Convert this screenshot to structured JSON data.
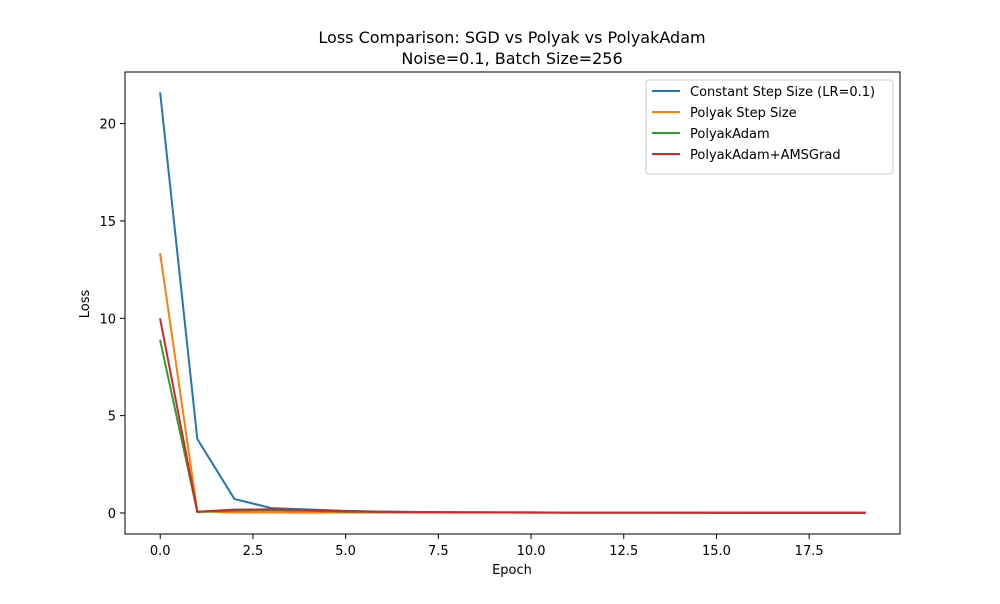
{
  "chart_data": {
    "type": "line",
    "title": "Loss Comparison: SGD vs Polyak vs PolyakAdam",
    "subtitle": "Noise=0.1, Batch Size=256",
    "xlabel": "Epoch",
    "ylabel": "Loss",
    "xlim": [
      -0.95,
      19.95
    ],
    "ylim": [
      -1.08,
      22.65
    ],
    "x_ticks": [
      0.0,
      2.5,
      5.0,
      7.5,
      10.0,
      12.5,
      15.0,
      17.5
    ],
    "x_tick_labels": [
      "0.0",
      "2.5",
      "5.0",
      "7.5",
      "10.0",
      "12.5",
      "15.0",
      "17.5"
    ],
    "y_ticks": [
      0,
      5,
      10,
      15,
      20
    ],
    "y_tick_labels": [
      "0",
      "5",
      "10",
      "15",
      "20"
    ],
    "grid": false,
    "legend_position": "top-right",
    "x": [
      0,
      1,
      2,
      3,
      4,
      5,
      6,
      7,
      8,
      9,
      10,
      11,
      12,
      13,
      14,
      15,
      16,
      17,
      18,
      19
    ],
    "series": [
      {
        "name": "Constant Step Size (LR=0.1)",
        "color": "#1f77b4",
        "values": [
          21.55,
          3.8,
          0.72,
          0.25,
          0.18,
          0.11,
          0.07,
          0.05,
          0.04,
          0.03,
          0.03,
          0.02,
          0.02,
          0.02,
          0.02,
          0.02,
          0.01,
          0.01,
          0.01,
          0.01
        ]
      },
      {
        "name": "Polyak Step Size",
        "color": "#ff7f0e",
        "values": [
          13.3,
          0.08,
          0.03,
          0.03,
          0.02,
          0.02,
          0.02,
          0.02,
          0.02,
          0.02,
          0.01,
          0.01,
          0.01,
          0.01,
          0.01,
          0.01,
          0.01,
          0.01,
          0.01,
          0.01
        ]
      },
      {
        "name": "PolyakAdam",
        "color": "#2ca02c",
        "values": [
          8.85,
          0.05,
          0.12,
          0.14,
          0.11,
          0.07,
          0.05,
          0.04,
          0.03,
          0.03,
          0.02,
          0.02,
          0.02,
          0.02,
          0.01,
          0.01,
          0.01,
          0.01,
          0.01,
          0.01
        ]
      },
      {
        "name": "PolyakAdam+AMSGrad",
        "color": "#d62728",
        "values": [
          9.95,
          0.06,
          0.17,
          0.19,
          0.15,
          0.09,
          0.06,
          0.05,
          0.04,
          0.03,
          0.03,
          0.02,
          0.02,
          0.02,
          0.02,
          0.01,
          0.01,
          0.01,
          0.01,
          0.01
        ]
      }
    ]
  }
}
